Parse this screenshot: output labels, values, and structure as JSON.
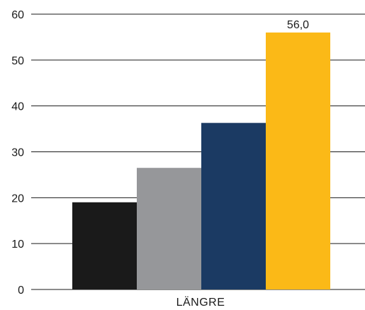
{
  "chart_data": {
    "type": "bar",
    "categories": [
      "LÄNGRE"
    ],
    "series": [
      {
        "values": [
          19.0
        ],
        "color": "#1a1a1a"
      },
      {
        "values": [
          26.5
        ],
        "color": "#96979a"
      },
      {
        "values": [
          36.3
        ],
        "color": "#1b3a63"
      },
      {
        "values": [
          56.0
        ],
        "color": "#fbb917"
      }
    ],
    "data_labels": [
      "",
      "",
      "",
      "56,0"
    ],
    "yticks": [
      "0",
      "10",
      "20",
      "30",
      "40",
      "50",
      "60"
    ],
    "ylim": [
      0,
      60
    ],
    "grid": true,
    "title": "",
    "xlabel": "",
    "ylabel": ""
  }
}
